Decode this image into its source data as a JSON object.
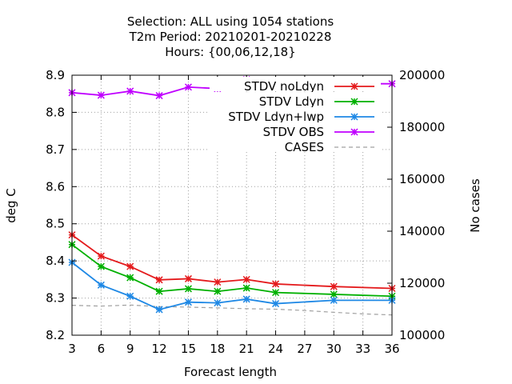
{
  "chart_data": {
    "type": "line",
    "title_lines": [
      "Selection: ALL using  1054 stations",
      "T2m   Period: 20210201-20210228",
      "Hours: {00,06,12,18}"
    ],
    "xlabel": "Forecast length",
    "ylabel": "deg C",
    "y2label": "No cases",
    "xlim": [
      3,
      36
    ],
    "ylim": [
      8.2,
      8.9
    ],
    "y2lim": [
      100000,
      200000
    ],
    "xticks": [
      "3",
      "6",
      "9",
      "12",
      "15",
      "18",
      "21",
      "24",
      "27",
      "30",
      "33",
      "36"
    ],
    "yticks": [
      "8.2",
      "8.3",
      "8.4",
      "8.5",
      "8.6",
      "8.7",
      "8.8",
      "8.9"
    ],
    "y2ticks": [
      "100000",
      "120000",
      "140000",
      "160000",
      "180000",
      "200000"
    ],
    "grid": true,
    "legend_position": "top-right",
    "x": [
      3,
      6,
      9,
      12,
      15,
      18,
      21,
      24,
      30,
      36
    ],
    "series": [
      {
        "name": "STDV noLdyn",
        "color": "#e41a1c",
        "axis": "y",
        "values": [
          8.47,
          8.413,
          8.385,
          8.349,
          8.352,
          8.343,
          8.35,
          8.338,
          8.331,
          8.326
        ]
      },
      {
        "name": "STDV Ldyn",
        "color": "#00b000",
        "axis": "y",
        "values": [
          8.444,
          8.385,
          8.355,
          8.318,
          8.325,
          8.318,
          8.327,
          8.315,
          8.31,
          8.305
        ]
      },
      {
        "name": "STDV Ldyn+lwp",
        "color": "#1e88e5",
        "axis": "y",
        "values": [
          8.396,
          8.335,
          8.305,
          8.269,
          8.289,
          8.287,
          8.297,
          8.285,
          8.294,
          8.294
        ]
      },
      {
        "name": "STDV OBS",
        "color": "#c000ff",
        "axis": "y",
        "values": [
          8.853,
          8.846,
          8.857,
          8.845,
          8.868,
          8.864,
          8.888,
          8.874,
          8.877,
          8.877
        ]
      }
    ],
    "cases": {
      "name": "CASES",
      "color": "#a0a0a0",
      "axis": "y2",
      "x": [
        3,
        6,
        9,
        12,
        15,
        18,
        21,
        24,
        27,
        30,
        33,
        36
      ],
      "values": [
        111500,
        111200,
        111600,
        111000,
        110800,
        110500,
        110200,
        110000,
        109500,
        108800,
        108200,
        107800
      ]
    }
  }
}
